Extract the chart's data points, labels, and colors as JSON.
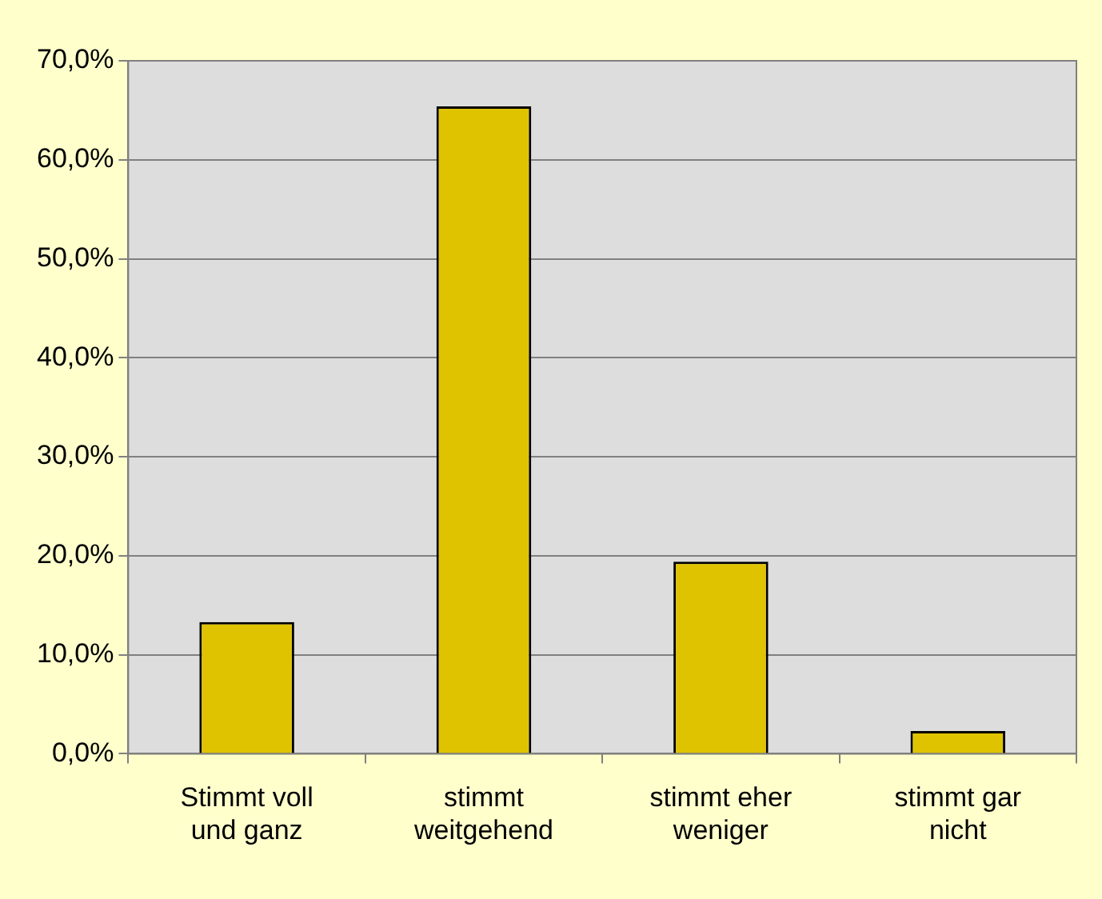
{
  "chart_data": {
    "type": "bar",
    "categories": [
      "Stimmt voll und ganz",
      "stimmt weitgehend",
      "stimmt eher weniger",
      "stimmt gar nicht"
    ],
    "values": [
      13.3,
      65.4,
      19.4,
      2.3
    ],
    "color": "#dfc300",
    "ylim": [
      0,
      70
    ],
    "yticks": [
      {
        "value": 0,
        "label": "0,0%"
      },
      {
        "value": 10,
        "label": "10,0%"
      },
      {
        "value": 20,
        "label": "20,0%"
      },
      {
        "value": 30,
        "label": "30,0%"
      },
      {
        "value": 40,
        "label": "40,0%"
      },
      {
        "value": 50,
        "label": "50,0%"
      },
      {
        "value": 60,
        "label": "60,0%"
      },
      {
        "value": 70,
        "label": "70,0%"
      }
    ],
    "grid": "y",
    "legend": false
  }
}
